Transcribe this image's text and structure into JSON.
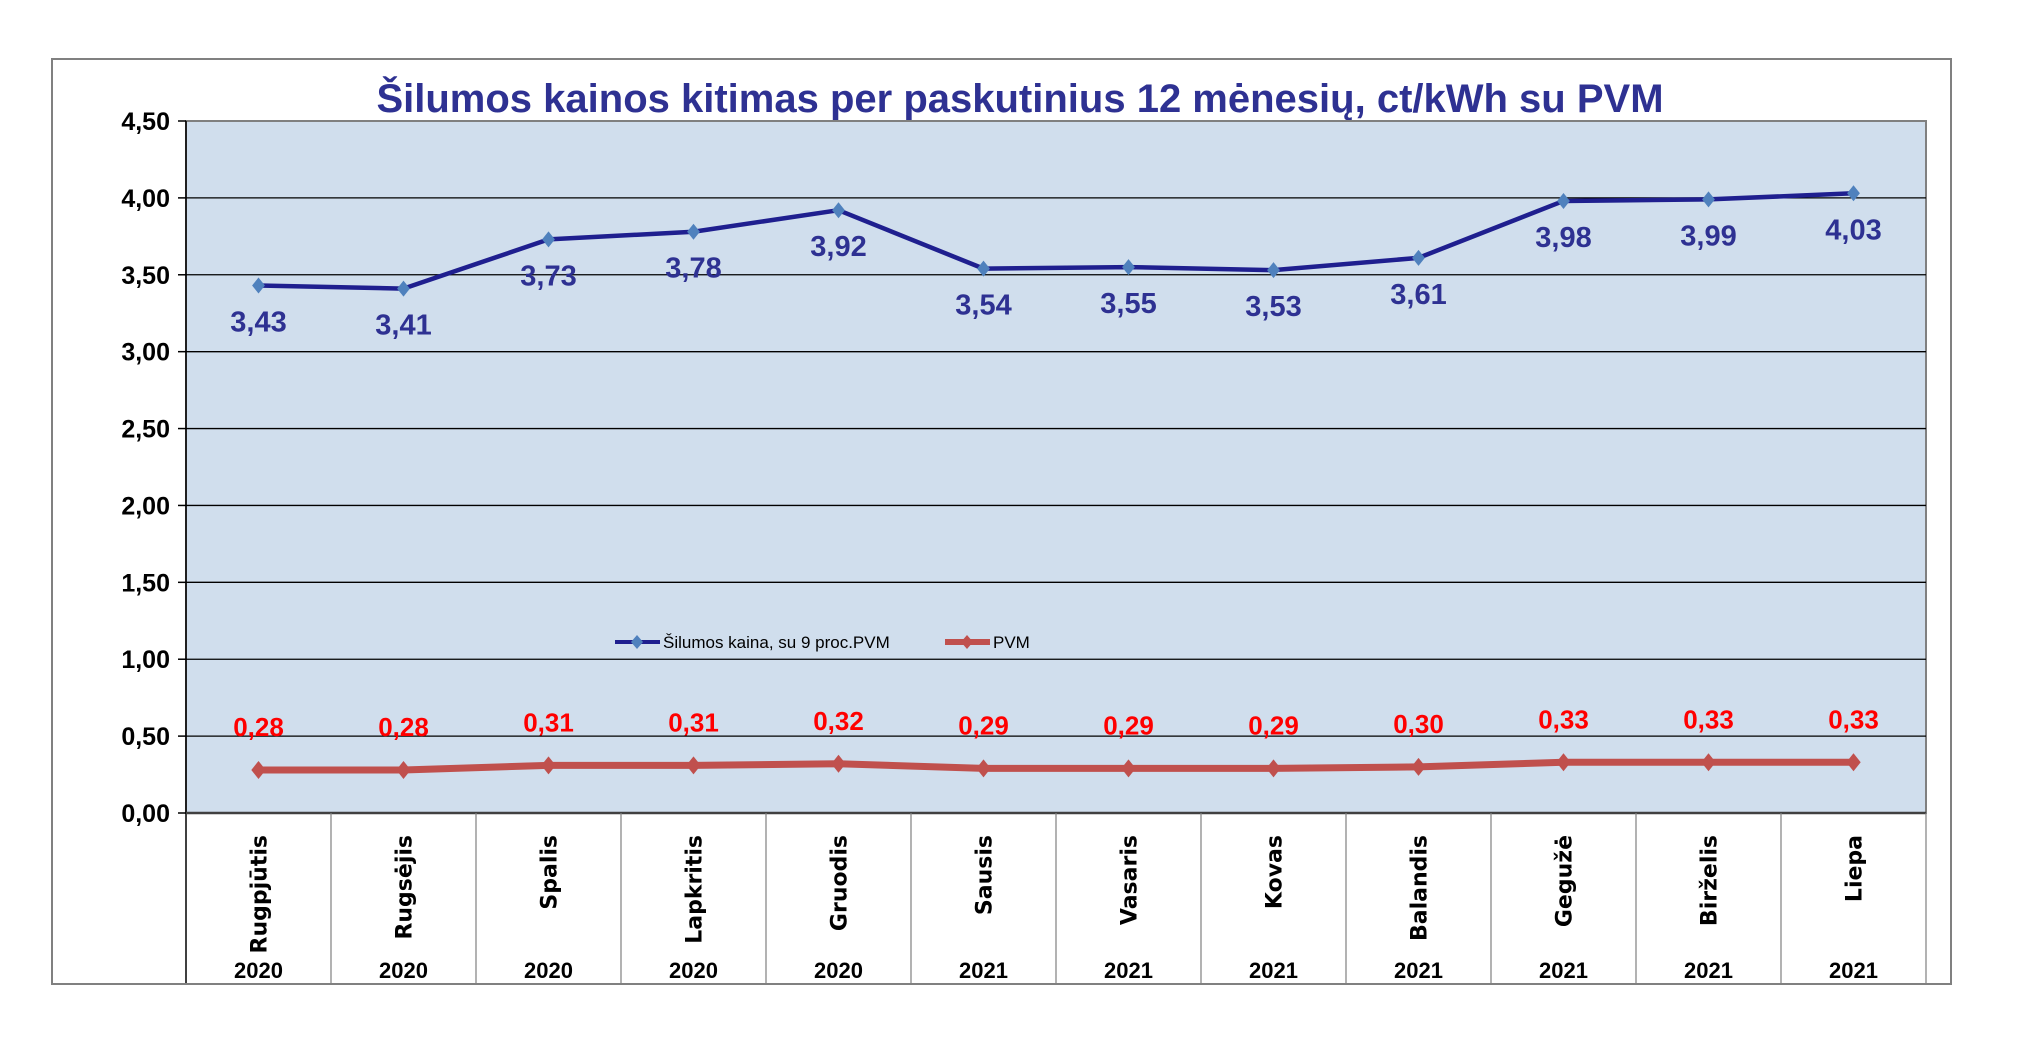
{
  "chart_data": {
    "type": "line",
    "title": "Šilumos kainos kitimas per paskutinius 12 mėnesių, ct/kWh su PVM",
    "xlabel": "",
    "ylabel": "",
    "ylim": [
      0,
      4.5
    ],
    "yticks": [
      "0,00",
      "0,50",
      "1,00",
      "1,50",
      "2,00",
      "2,50",
      "3,00",
      "3,50",
      "4,00",
      "4,50"
    ],
    "grid": true,
    "legend_position": "center",
    "categories": [
      "Rugpjūtis",
      "Rugsėjis",
      "Spalis",
      "Lapkritis",
      "Gruodis",
      "Sausis",
      "Vasaris",
      "Kovas",
      "Balandis",
      "Gegužė",
      "Birželis",
      "Liepa"
    ],
    "years": [
      "2020",
      "2020",
      "2020",
      "2020",
      "2020",
      "2021",
      "2021",
      "2021",
      "2021",
      "2021",
      "2021",
      "2021"
    ],
    "series": [
      {
        "name": "Šilumos kaina, su 9 proc.PVM",
        "color": "#1f1f8f",
        "marker_color": "#4f81bd",
        "values": [
          3.43,
          3.41,
          3.73,
          3.78,
          3.92,
          3.54,
          3.55,
          3.53,
          3.61,
          3.98,
          3.99,
          4.03
        ],
        "labels": [
          "3,43",
          "3,41",
          "3,73",
          "3,78",
          "3,92",
          "3,54",
          "3,55",
          "3,53",
          "3,61",
          "3,98",
          "3,99",
          "4,03"
        ]
      },
      {
        "name": "PVM",
        "color": "#c0504d",
        "marker_color": "#c0504d",
        "values": [
          0.28,
          0.28,
          0.31,
          0.31,
          0.32,
          0.29,
          0.29,
          0.29,
          0.3,
          0.33,
          0.33,
          0.33
        ],
        "labels": [
          "0,28",
          "0,28",
          "0,31",
          "0,31",
          "0,32",
          "0,29",
          "0,29",
          "0,29",
          "0,30",
          "0,33",
          "0,33",
          "0,33"
        ]
      }
    ],
    "colors": {
      "plot_bg": "#d0deed",
      "title": "#2e3192",
      "label_red": "#ff0000"
    }
  }
}
